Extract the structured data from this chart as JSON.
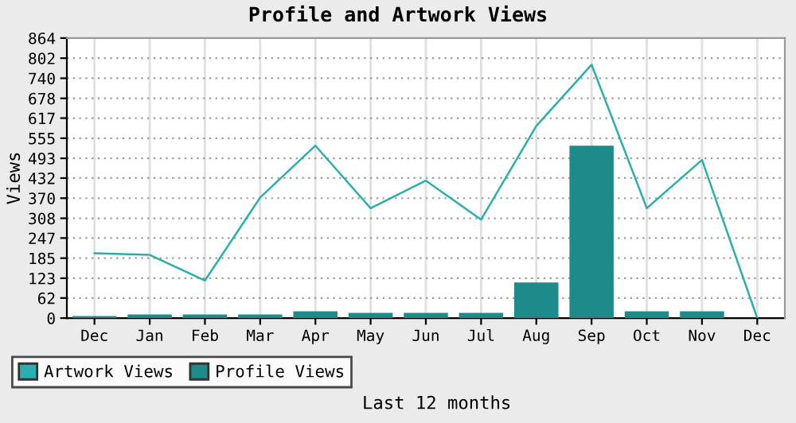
{
  "chart_data": {
    "type": "bar",
    "title": "Profile and Artwork Views",
    "ylabel": "Views",
    "xlabel": "Last 12 months",
    "categories": [
      "Dec",
      "Jan",
      "Feb",
      "Mar",
      "Apr",
      "May",
      "Jun",
      "Jul",
      "Aug",
      "Sep",
      "Oct",
      "Nov",
      "Dec"
    ],
    "series": [
      {
        "name": "Artwork Views",
        "type": "line",
        "color": "#2aaeae",
        "values": [
          200,
          195,
          116,
          372,
          532,
          339,
          424,
          304,
          593,
          782,
          339,
          488,
          0
        ]
      },
      {
        "name": "Profile Views",
        "color": "#1e8a8a",
        "values": [
          6,
          11,
          11,
          11,
          21,
          16,
          16,
          16,
          110,
          532,
          21,
          21,
          null
        ]
      }
    ],
    "ylim": [
      0,
      864
    ],
    "yticks": [
      0,
      62,
      123,
      185,
      247,
      308,
      370,
      432,
      493,
      555,
      617,
      678,
      740,
      802,
      864
    ],
    "grid": true,
    "legend": "bottom left"
  }
}
